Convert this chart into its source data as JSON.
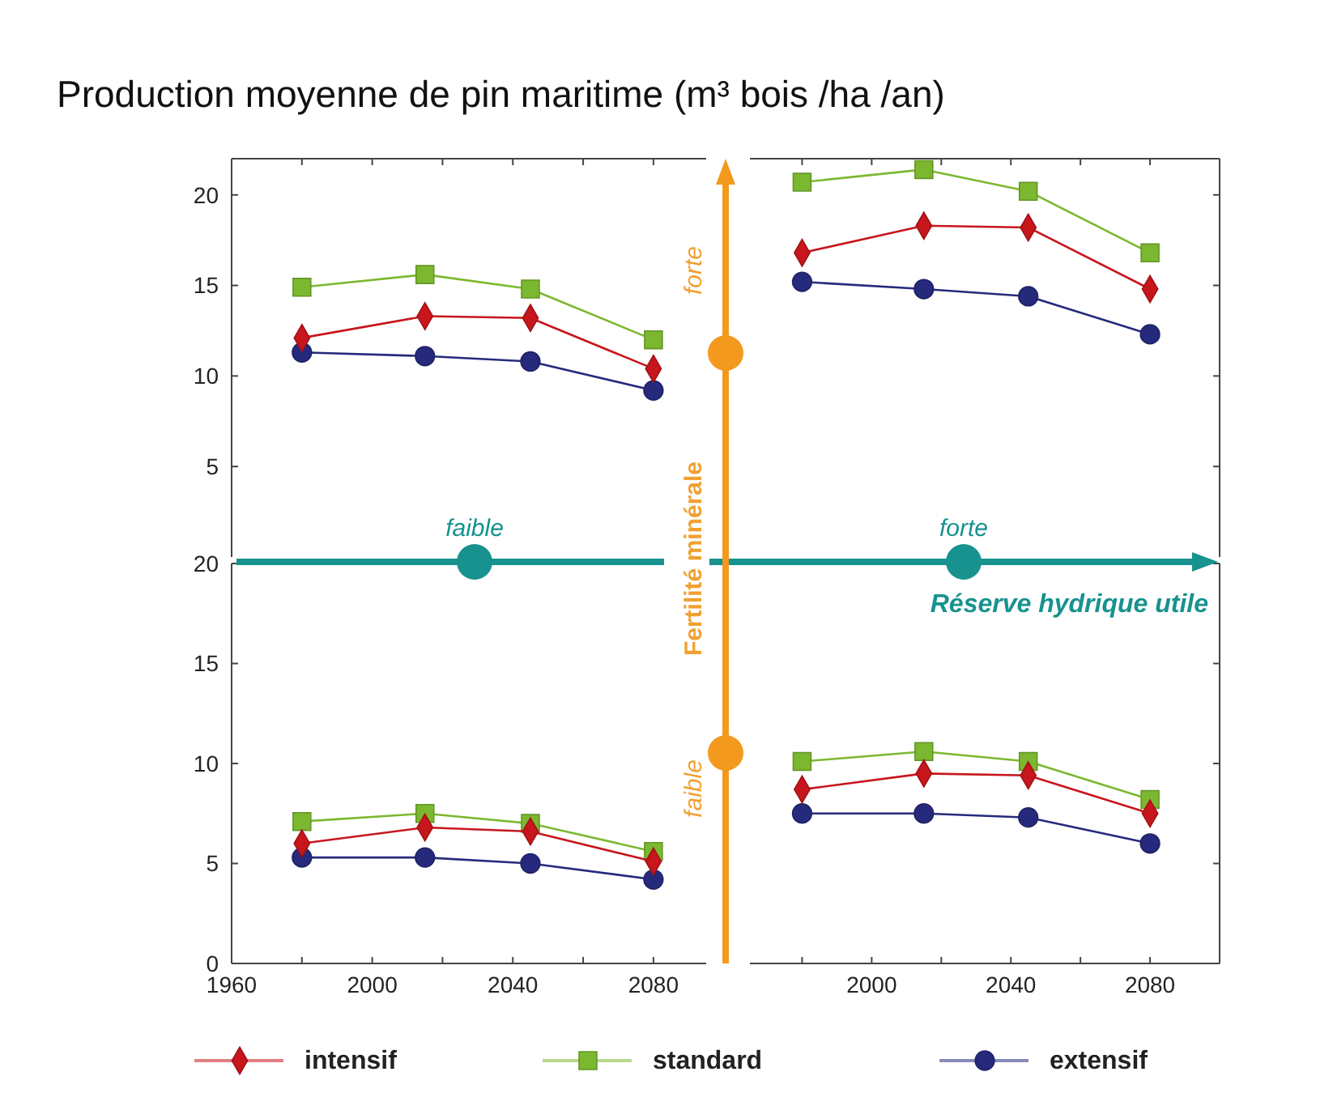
{
  "chart_data": [
    {
      "type": "line",
      "title": "Production moyenne de pin maritime (m³ bois /ha /an)",
      "legend": "bottom",
      "tick_labels": "y",
      "annotations": [
        "faible",
        "forte",
        "Réserve hydrique utile",
        "Fertilité minérale",
        "faible",
        "forte"
      ],
      "x": [
        1980,
        2015,
        2045,
        2080
      ],
      "xlim": [
        1960,
        2095
      ],
      "xticks": [
        1960,
        {
          "value": 1980,
          "label": null
        },
        2000,
        {
          "value": 2020,
          "label": null
        },
        2040,
        {
          "value": 2060,
          "label": null
        },
        2080
      ],
      "ylim": [
        0,
        22
      ],
      "yticks": [
        5,
        10,
        15,
        20
      ],
      "series": [
        {
          "name": "intensif",
          "color": "#c8161d",
          "marker": "diamond",
          "values": [
            12.1,
            13.3,
            13.2,
            10.4
          ]
        },
        {
          "name": "standard",
          "color": "#7cb82f",
          "marker": "square",
          "values": [
            14.9,
            15.6,
            14.8,
            12.0
          ]
        },
        {
          "name": "extensif",
          "color": "#262a7c",
          "marker": "circle",
          "values": [
            11.3,
            11.1,
            10.8,
            9.2
          ]
        }
      ]
    },
    {
      "type": "line",
      "tick_labels": false,
      "x": [
        1980,
        2015,
        2045,
        2080
      ],
      "xlim": [
        1965,
        2100
      ],
      "xticks": [
        {
          "value": 1980,
          "label": null
        },
        2000,
        {
          "value": 2020,
          "label": null
        },
        2040,
        {
          "value": 2060,
          "label": null
        },
        2080
      ],
      "ylim": [
        0,
        22
      ],
      "yticks": [
        5,
        10,
        15,
        20
      ],
      "series": [
        {
          "color": "#c8161d",
          "marker": "diamond",
          "values": [
            16.8,
            18.3,
            18.2,
            14.8
          ]
        },
        {
          "color": "#7cb82f",
          "marker": "square",
          "values": [
            20.7,
            21.4,
            20.2,
            16.8
          ]
        },
        {
          "color": "#262a7c",
          "marker": "circle",
          "values": [
            15.2,
            14.8,
            14.4,
            12.3
          ]
        }
      ]
    },
    {
      "type": "line",
      "x": [
        1980,
        2015,
        2045,
        2080
      ],
      "xlim": [
        1960,
        2095
      ],
      "xticks": [
        1960,
        {
          "value": 1980,
          "label": null
        },
        2000,
        {
          "value": 2020,
          "label": null
        },
        2040,
        {
          "value": 2060,
          "label": null
        },
        2080
      ],
      "ylim": [
        0,
        20
      ],
      "yticks": [
        0,
        5,
        10,
        15,
        20
      ],
      "series": [
        {
          "color": "#c8161d",
          "marker": "diamond",
          "values": [
            6.0,
            6.8,
            6.6,
            5.1
          ]
        },
        {
          "color": "#7cb82f",
          "marker": "square",
          "values": [
            7.1,
            7.5,
            7.0,
            5.6
          ]
        },
        {
          "color": "#262a7c",
          "marker": "circle",
          "values": [
            5.3,
            5.3,
            5.0,
            4.2
          ]
        }
      ]
    },
    {
      "type": "line",
      "tick_labels": "x",
      "x": [
        1980,
        2015,
        2045,
        2080
      ],
      "xlim": [
        1965,
        2100
      ],
      "xticks": [
        {
          "value": 1980,
          "label": null
        },
        2000,
        {
          "value": 2020,
          "label": null
        },
        2040,
        {
          "value": 2060,
          "label": null
        },
        2080
      ],
      "ylim": [
        0,
        20
      ],
      "yticks": [
        5,
        10,
        15,
        20
      ],
      "series": [
        {
          "color": "#c8161d",
          "marker": "diamond",
          "values": [
            8.7,
            9.5,
            9.4,
            7.5
          ]
        },
        {
          "color": "#7cb82f",
          "marker": "square",
          "values": [
            10.1,
            10.6,
            10.1,
            8.2
          ]
        },
        {
          "color": "#262a7c",
          "marker": "circle",
          "values": [
            7.5,
            7.5,
            7.3,
            6.0
          ]
        }
      ]
    }
  ]
}
